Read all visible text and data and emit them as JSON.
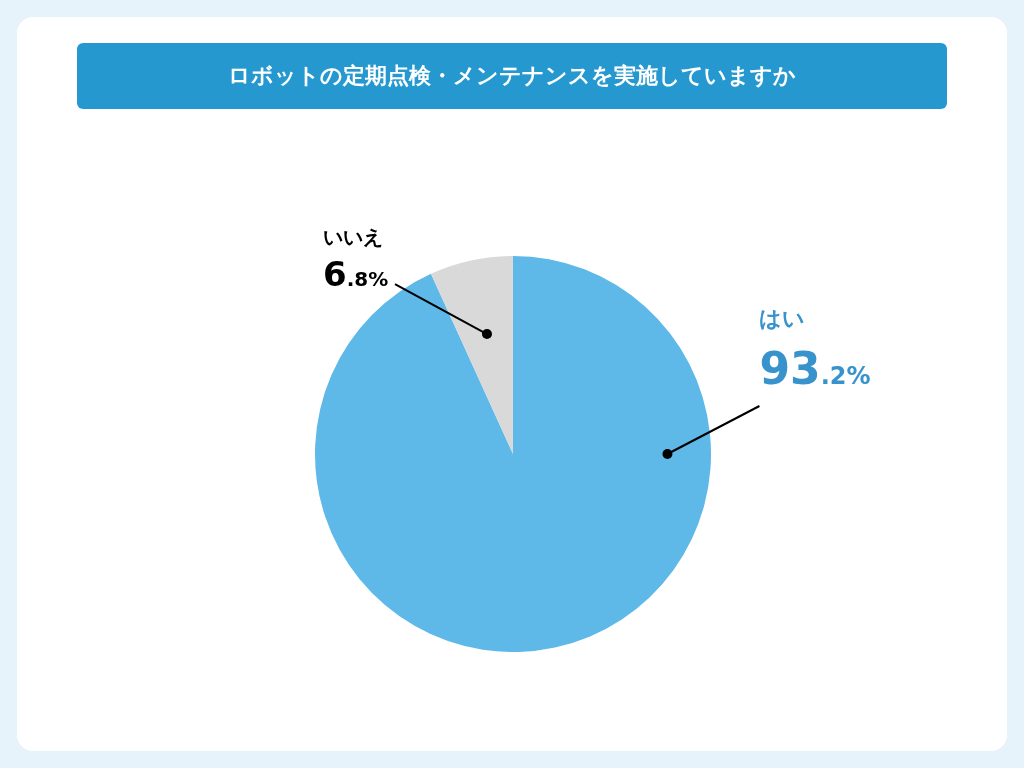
{
  "chart_data": {
    "type": "pie",
    "title": "ロボットの定期点検・メンテナンスを実施していますか",
    "categories": [
      "はい",
      "いいえ"
    ],
    "values": [
      93.2,
      6.8
    ],
    "colors": [
      "#5eb8e8",
      "#d9d9d9"
    ],
    "value_labels": [
      "93.2%",
      "6.8%"
    ],
    "legend": false
  }
}
